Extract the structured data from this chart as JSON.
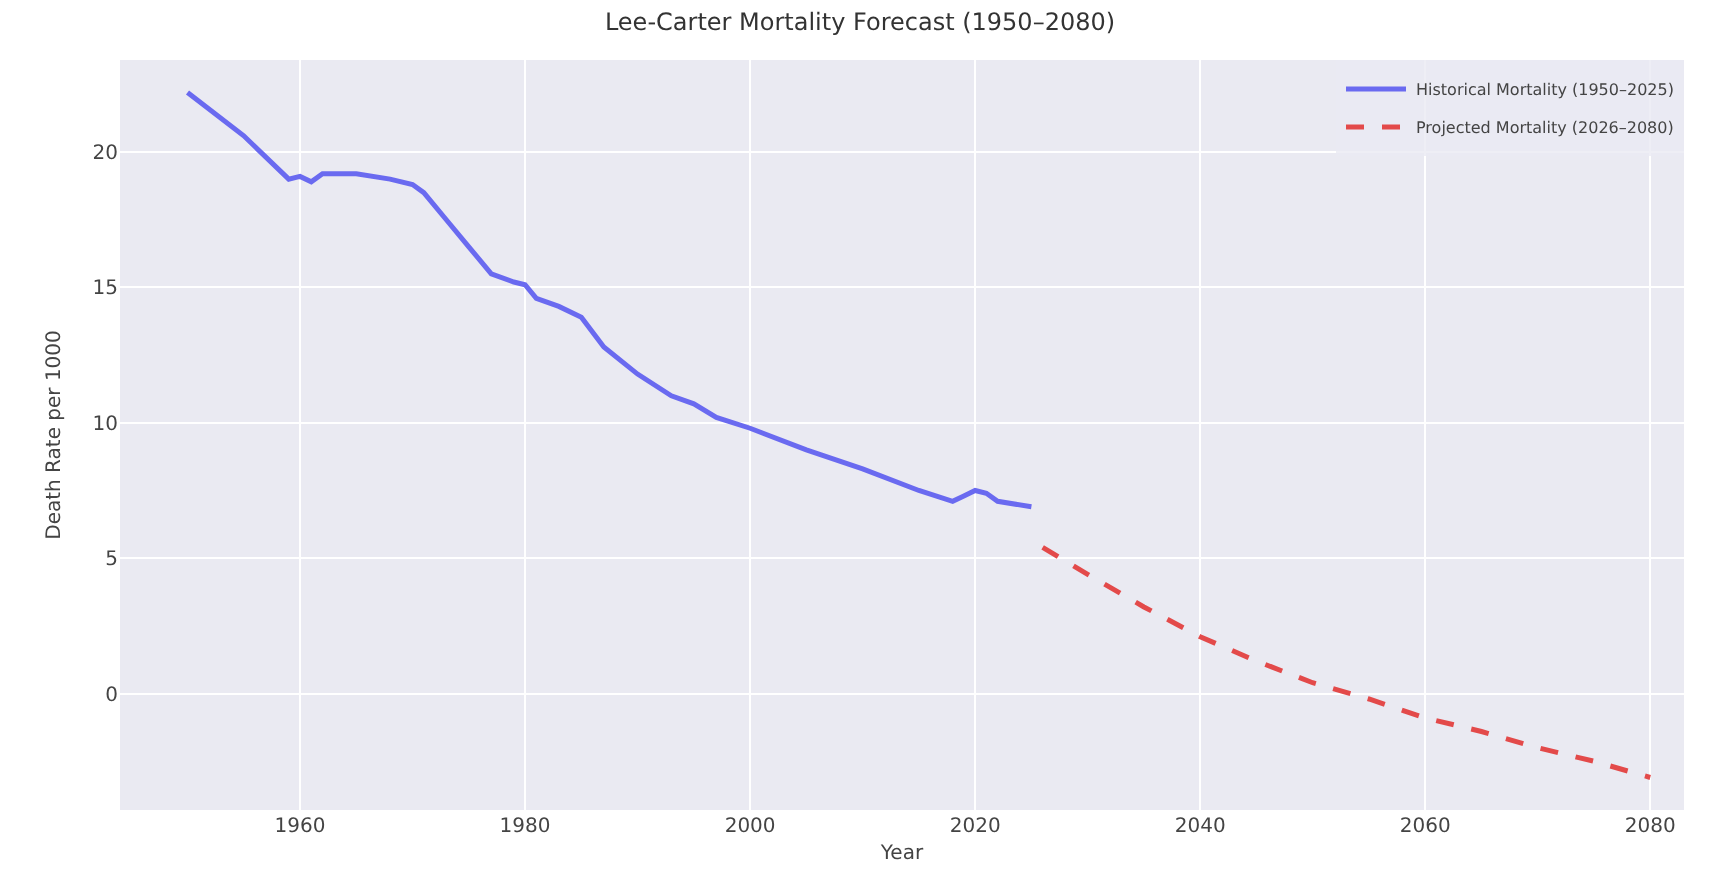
{
  "chart_data": {
    "type": "line",
    "title": "Lee-Carter Mortality Forecast (1950–2080)",
    "xlabel": "Year",
    "ylabel": "Death Rate per 1000",
    "xlim": [
      1944,
      2083
    ],
    "xticks": [
      1960,
      1980,
      2000,
      2020,
      2040,
      2060,
      2080
    ],
    "ylim": [
      -4.3,
      23.4
    ],
    "yticks": [
      0,
      5,
      10,
      15,
      20
    ],
    "grid": true,
    "legend": "top right",
    "marker": "none",
    "series": [
      {
        "name": "Historical Mortality (1950–2025)",
        "color": "#6a6af0",
        "line_style": "solid",
        "x": [
          1950,
          1955,
          1959,
          1960,
          1961,
          1962,
          1965,
          1968,
          1970,
          1971,
          1973,
          1975,
          1977,
          1979,
          1980,
          1981,
          1983,
          1985,
          1987,
          1990,
          1993,
          1995,
          1997,
          2000,
          2005,
          2010,
          2015,
          2018,
          2019,
          2020,
          2021,
          2022,
          2025
        ],
        "values": [
          22.2,
          20.6,
          19.0,
          19.1,
          18.9,
          19.2,
          19.2,
          19.0,
          18.8,
          18.5,
          17.5,
          16.5,
          15.5,
          15.2,
          15.1,
          14.6,
          14.3,
          13.9,
          12.8,
          11.8,
          11.0,
          10.7,
          10.2,
          9.8,
          9.0,
          8.3,
          7.5,
          7.1,
          7.3,
          7.5,
          7.4,
          7.1,
          6.9
        ]
      },
      {
        "name": "Projected Mortality (2026–2080)",
        "color": "#e34a4a",
        "line_style": "dashed",
        "x": [
          2026,
          2030,
          2035,
          2040,
          2045,
          2050,
          2055,
          2060,
          2065,
          2070,
          2075,
          2080
        ],
        "values": [
          5.4,
          4.4,
          3.2,
          2.1,
          1.2,
          0.4,
          -0.2,
          -0.9,
          -1.4,
          -2.0,
          -2.5,
          -3.1
        ]
      }
    ]
  }
}
